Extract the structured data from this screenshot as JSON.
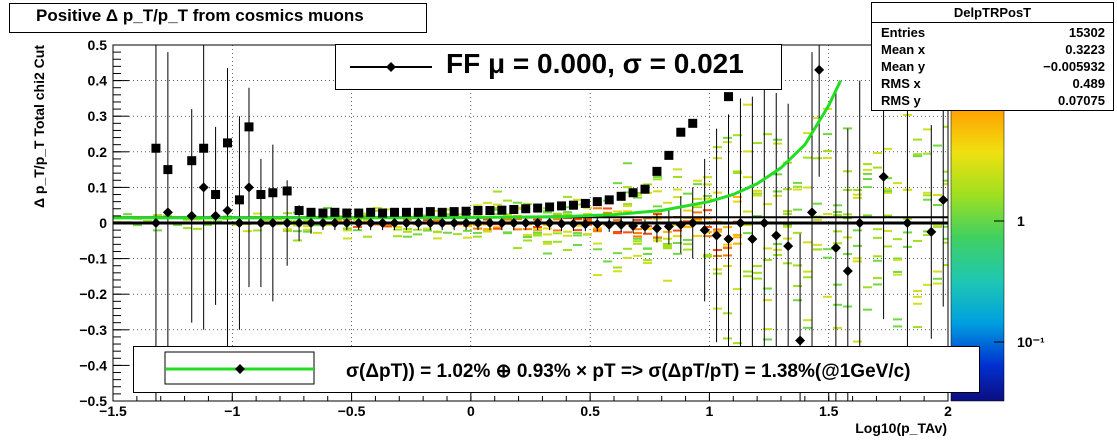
{
  "chart_data": {
    "type": "scatter",
    "title": "Positive Δ p_T/p_T from cosmics muons",
    "xlabel": "Log10(p_TAv)",
    "ylabel": "Δ p_T/p_T   Total chi2 Cut",
    "xlim": [
      -1.5,
      2.0
    ],
    "ylim": [
      -0.5,
      0.5
    ],
    "x_ticks": [
      "−1.5",
      "−1",
      "−0.5",
      "0",
      "0.5",
      "1",
      "1.5",
      "2"
    ],
    "y_ticks": [
      "0.5",
      "0.4",
      "0.3",
      "0.2",
      "0.1",
      "0",
      "−0.1",
      "−0.2",
      "−0.3",
      "−0.4",
      "−0.5"
    ],
    "z_scale": "log",
    "z_ticks": [
      "1",
      "10⁻¹"
    ],
    "grid": true,
    "square_markers_rms": [
      {
        "x": -1.32,
        "y": 0.21
      },
      {
        "x": -1.27,
        "y": 0.15
      },
      {
        "x": -1.17,
        "y": 0.175
      },
      {
        "x": -1.12,
        "y": 0.21
      },
      {
        "x": -1.07,
        "y": 0.08
      },
      {
        "x": -1.02,
        "y": 0.225
      },
      {
        "x": -0.97,
        "y": 0.065
      },
      {
        "x": -0.93,
        "y": 0.27
      },
      {
        "x": -0.88,
        "y": 0.08
      },
      {
        "x": -0.83,
        "y": 0.085
      },
      {
        "x": -0.77,
        "y": 0.09
      },
      {
        "x": -0.72,
        "y": 0.035
      },
      {
        "x": -0.67,
        "y": 0.03
      },
      {
        "x": -0.62,
        "y": 0.028
      },
      {
        "x": -0.57,
        "y": 0.03
      },
      {
        "x": -0.52,
        "y": 0.028
      },
      {
        "x": -0.47,
        "y": 0.028
      },
      {
        "x": -0.42,
        "y": 0.03
      },
      {
        "x": -0.37,
        "y": 0.028
      },
      {
        "x": -0.32,
        "y": 0.03
      },
      {
        "x": -0.27,
        "y": 0.03
      },
      {
        "x": -0.22,
        "y": 0.03
      },
      {
        "x": -0.17,
        "y": 0.032
      },
      {
        "x": -0.12,
        "y": 0.03
      },
      {
        "x": -0.07,
        "y": 0.032
      },
      {
        "x": -0.02,
        "y": 0.033
      },
      {
        "x": 0.03,
        "y": 0.035
      },
      {
        "x": 0.08,
        "y": 0.035
      },
      {
        "x": 0.13,
        "y": 0.036
      },
      {
        "x": 0.18,
        "y": 0.038
      },
      {
        "x": 0.23,
        "y": 0.04
      },
      {
        "x": 0.28,
        "y": 0.042
      },
      {
        "x": 0.33,
        "y": 0.045
      },
      {
        "x": 0.38,
        "y": 0.048
      },
      {
        "x": 0.43,
        "y": 0.05
      },
      {
        "x": 0.48,
        "y": 0.055
      },
      {
        "x": 0.53,
        "y": 0.06
      },
      {
        "x": 0.58,
        "y": 0.065
      },
      {
        "x": 0.63,
        "y": 0.075
      },
      {
        "x": 0.68,
        "y": 0.085
      },
      {
        "x": 0.73,
        "y": 0.095
      },
      {
        "x": 0.78,
        "y": 0.145
      },
      {
        "x": 0.83,
        "y": 0.19
      },
      {
        "x": 0.88,
        "y": 0.255
      },
      {
        "x": 0.93,
        "y": 0.28
      },
      {
        "x": 1.08,
        "y": 0.355
      }
    ],
    "diamond_markers_mean": [
      {
        "x": -1.32,
        "y": 0.0,
        "err": 0.5
      },
      {
        "x": -1.27,
        "y": 0.03,
        "err": 0.45
      },
      {
        "x": -1.17,
        "y": 0.02,
        "err": 0.3
      },
      {
        "x": -1.12,
        "y": 0.1,
        "err": 0.4
      },
      {
        "x": -1.07,
        "y": 0.02,
        "err": 0.25
      },
      {
        "x": -1.02,
        "y": 0.035,
        "err": 0.4
      },
      {
        "x": -0.97,
        "y": 0.0,
        "err": 0.3
      },
      {
        "x": -0.93,
        "y": 0.1,
        "err": 0.28
      },
      {
        "x": -0.88,
        "y": 0.0,
        "err": 0.18
      },
      {
        "x": -0.83,
        "y": 0.0,
        "err": 0.22
      },
      {
        "x": -0.77,
        "y": 0.0,
        "err": 0.12
      },
      {
        "x": -0.72,
        "y": 0.0,
        "err": 0.05
      },
      {
        "x": -0.67,
        "y": 0.0,
        "err": 0.03
      },
      {
        "x": -0.62,
        "y": 0.0,
        "err": 0.02
      },
      {
        "x": -0.57,
        "y": 0.0,
        "err": 0.02
      },
      {
        "x": -0.52,
        "y": 0.0,
        "err": 0.02
      },
      {
        "x": -0.47,
        "y": 0.0,
        "err": 0.02
      },
      {
        "x": -0.42,
        "y": 0.0,
        "err": 0.02
      },
      {
        "x": -0.37,
        "y": 0.0,
        "err": 0.02
      },
      {
        "x": -0.32,
        "y": 0.0,
        "err": 0.02
      },
      {
        "x": -0.27,
        "y": 0.0,
        "err": 0.02
      },
      {
        "x": -0.22,
        "y": 0.0,
        "err": 0.02
      },
      {
        "x": -0.17,
        "y": 0.0,
        "err": 0.02
      },
      {
        "x": -0.12,
        "y": 0.0,
        "err": 0.02
      },
      {
        "x": -0.07,
        "y": 0.0,
        "err": 0.02
      },
      {
        "x": -0.02,
        "y": 0.0,
        "err": 0.02
      },
      {
        "x": 0.03,
        "y": 0.0,
        "err": 0.02
      },
      {
        "x": 0.08,
        "y": 0.0,
        "err": 0.02
      },
      {
        "x": 0.13,
        "y": 0.0,
        "err": 0.02
      },
      {
        "x": 0.18,
        "y": 0.0,
        "err": 0.02
      },
      {
        "x": 0.23,
        "y": 0.0,
        "err": 0.02
      },
      {
        "x": 0.28,
        "y": 0.0,
        "err": 0.02
      },
      {
        "x": 0.33,
        "y": 0.0,
        "err": 0.02
      },
      {
        "x": 0.38,
        "y": -0.002,
        "err": 0.02
      },
      {
        "x": 0.43,
        "y": -0.002,
        "err": 0.02
      },
      {
        "x": 0.48,
        "y": -0.003,
        "err": 0.02
      },
      {
        "x": 0.53,
        "y": -0.003,
        "err": 0.02
      },
      {
        "x": 0.58,
        "y": -0.005,
        "err": 0.02
      },
      {
        "x": 0.63,
        "y": -0.005,
        "err": 0.02
      },
      {
        "x": 0.68,
        "y": -0.008,
        "err": 0.02
      },
      {
        "x": 0.73,
        "y": -0.01,
        "err": 0.02
      },
      {
        "x": 0.78,
        "y": -0.015,
        "err": 0.04
      },
      {
        "x": 0.83,
        "y": -0.01,
        "err": 0.05
      },
      {
        "x": 0.88,
        "y": -0.005,
        "err": 0.08
      },
      {
        "x": 0.93,
        "y": 0.0,
        "err": 0.1
      },
      {
        "x": 0.98,
        "y": -0.02,
        "err": 0.2
      },
      {
        "x": 1.03,
        "y": -0.035,
        "err": 0.3
      },
      {
        "x": 1.08,
        "y": -0.045,
        "err": 0.35
      },
      {
        "x": 1.13,
        "y": 0.0,
        "err": 0.35
      },
      {
        "x": 1.18,
        "y": -0.045,
        "err": 0.4
      },
      {
        "x": 1.23,
        "y": 0.0,
        "err": 0.4
      },
      {
        "x": 1.28,
        "y": -0.035,
        "err": 0.4
      },
      {
        "x": 1.33,
        "y": -0.065,
        "err": 0.4
      },
      {
        "x": 1.38,
        "y": -0.33,
        "err": 0.3
      },
      {
        "x": 1.43,
        "y": 0.03,
        "err": 0.45
      },
      {
        "x": 1.46,
        "y": 0.43,
        "err": 0.3
      },
      {
        "x": 1.53,
        "y": -0.07,
        "err": 0.45
      },
      {
        "x": 1.58,
        "y": -0.135,
        "err": 0.4
      },
      {
        "x": 1.63,
        "y": 0.0,
        "err": 0.4
      },
      {
        "x": 1.73,
        "y": 0.13,
        "err": 0.4
      },
      {
        "x": 1.83,
        "y": 0.0,
        "err": 0.4
      },
      {
        "x": 1.93,
        "y": -0.025,
        "err": 0.3
      },
      {
        "x": 1.98,
        "y": 0.065,
        "err": 0.3
      }
    ],
    "fit_curve": {
      "name": "σ(ΔpT)",
      "color": "#22dd22",
      "x": [
        -1.5,
        -1.0,
        -0.5,
        0.0,
        0.2,
        0.4,
        0.6,
        0.8,
        1.0,
        1.1,
        1.2,
        1.3,
        1.4,
        1.5,
        1.55
      ],
      "y": [
        0.0143,
        0.0144,
        0.0146,
        0.0155,
        0.0165,
        0.0182,
        0.0235,
        0.035,
        0.06,
        0.08,
        0.11,
        0.155,
        0.22,
        0.33,
        0.4
      ]
    },
    "mean_line": {
      "y": 0.0,
      "color": "#000000"
    }
  },
  "title_box": {
    "text": "Positive Δ p_T/p_T from cosmics muons"
  },
  "stats": {
    "name": "DelpTRPosT",
    "rows": [
      {
        "key": "Entries",
        "value": "15302"
      },
      {
        "key": "Mean x",
        "value": "0.3223"
      },
      {
        "key": "Mean y",
        "value": "−0.005932"
      },
      {
        "key": "RMS x",
        "value": "0.489"
      },
      {
        "key": "RMS y",
        "value": "0.07075"
      }
    ]
  },
  "legend_ff": {
    "text": "FF μ =  0.000, σ =   0.021"
  },
  "legend_res": {
    "text": "σ(ΔpT)) =  1.02% ⊕  0.93% × pT => σ(ΔpT/pT) =  1.38%(@1GeV/c)"
  },
  "colors": {
    "accent": "#22dd22",
    "marker": "#000000"
  }
}
